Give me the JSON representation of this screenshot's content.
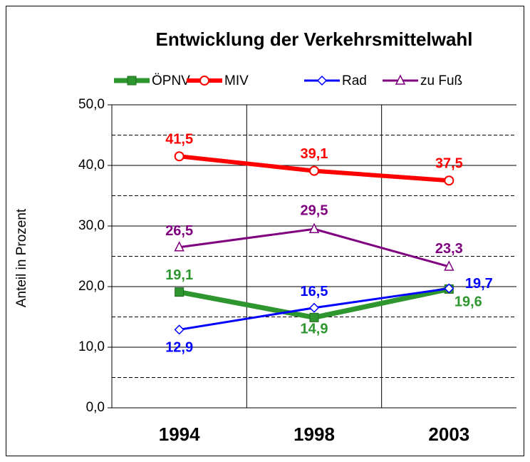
{
  "chart_data": {
    "type": "line",
    "title": "Entwicklung der Verkehrsmittelwahl",
    "y_label": "Anteil in Prozent",
    "categories": [
      "1994",
      "1998",
      "2003"
    ],
    "series": [
      {
        "name": "ÖPNV",
        "color": "#2e962e",
        "marker": "square",
        "values": [
          19.1,
          14.9,
          19.6
        ],
        "value_labels": [
          "19,1",
          "14,9",
          "19,6"
        ]
      },
      {
        "name": "MIV",
        "color": "#ff0000",
        "marker": "circle",
        "values": [
          41.5,
          39.1,
          37.5
        ],
        "value_labels": [
          "41,5",
          "39,1",
          "37,5"
        ]
      },
      {
        "name": "Rad",
        "color": "#0000ff",
        "marker": "diamond",
        "values": [
          12.9,
          16.5,
          19.7
        ],
        "value_labels": [
          "12,9",
          "16,5",
          "19,7"
        ]
      },
      {
        "name": "zu Fuß",
        "color": "#800080",
        "marker": "triangle",
        "values": [
          26.5,
          29.5,
          23.3
        ],
        "value_labels": [
          "26,5",
          "29,5",
          "23,3"
        ]
      }
    ],
    "ylim": [
      0,
      50
    ],
    "yticks": [
      {
        "value": 0,
        "label": "0,0"
      },
      {
        "value": 10,
        "label": "10,0"
      },
      {
        "value": 20,
        "label": "20,0"
      },
      {
        "value": 30,
        "label": "30,0"
      },
      {
        "value": 40,
        "label": "40,0"
      },
      {
        "value": 50,
        "label": "50,0"
      }
    ],
    "minor_grid": [
      5,
      15,
      25,
      35,
      45
    ],
    "grid": true,
    "legend": "top"
  }
}
